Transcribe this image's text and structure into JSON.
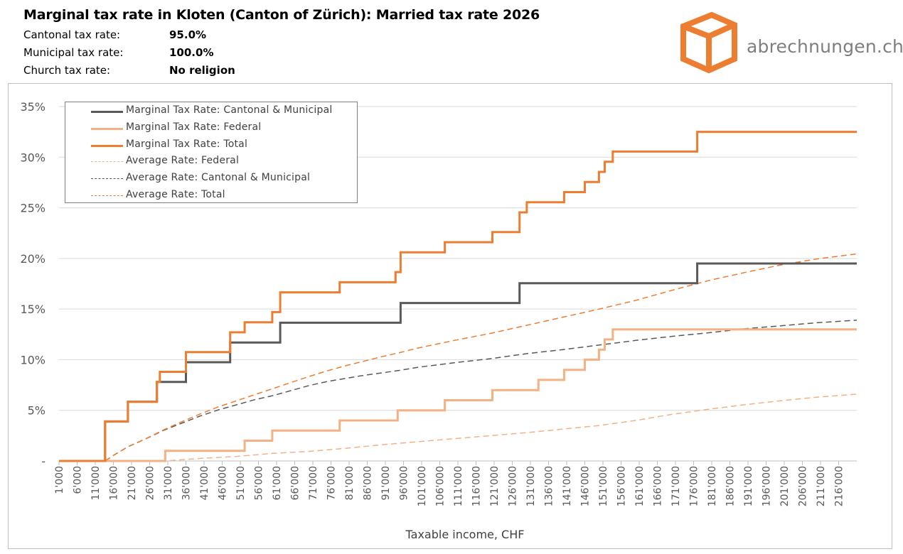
{
  "header": {
    "title": "Marginal tax rate in Kloten (Canton of Zürich): Married tax rate 2026",
    "rows": [
      {
        "label": "Cantonal tax rate:",
        "value": "95.0%"
      },
      {
        "label": "Municipal tax rate:",
        "value": "100.0%"
      },
      {
        "label": "Church tax rate:",
        "value": "No religion"
      }
    ]
  },
  "logo": {
    "text": "abrechnungen.ch",
    "icon": "box-icon",
    "color": "#ed7d31"
  },
  "chart_data": {
    "type": "line",
    "title": "",
    "xlabel": "Taxable income, CHF",
    "ylabel": "",
    "xlim": [
      1000,
      221000
    ],
    "ylim": [
      0,
      35
    ],
    "grid": true,
    "legend_position": "top-left",
    "x_tick_labels": [
      "1'000",
      "6'000",
      "11'000",
      "16'000",
      "21'000",
      "26'000",
      "31'000",
      "36'000",
      "41'000",
      "46'000",
      "51'000",
      "56'000",
      "61'000",
      "66'000",
      "71'000",
      "76'000",
      "81'000",
      "86'000",
      "91'000",
      "96'000",
      "101'000",
      "106'000",
      "111'000",
      "116'000",
      "121'000",
      "126'000",
      "131'000",
      "136'000",
      "141'000",
      "146'000",
      "151'000",
      "156'000",
      "161'000",
      "166'000",
      "171'000",
      "176'000",
      "181'000",
      "186'000",
      "191'000",
      "196'000",
      "201'000",
      "206'000",
      "211'000",
      "216'000"
    ],
    "y_tick_labels": [
      "-",
      "5%",
      "10%",
      "15%",
      "20%",
      "25%",
      "30%",
      "35%"
    ],
    "series": [
      {
        "name": "Marginal Tax Rate: Cantonal & Municipal",
        "color": "#595959",
        "style": "solid",
        "width": 3,
        "step": true,
        "points": [
          [
            1000,
            0
          ],
          [
            13700,
            0
          ],
          [
            13700,
            3.9
          ],
          [
            20000,
            3.9
          ],
          [
            20000,
            5.85
          ],
          [
            28000,
            5.85
          ],
          [
            28000,
            7.8
          ],
          [
            36000,
            7.8
          ],
          [
            36000,
            9.75
          ],
          [
            48200,
            9.75
          ],
          [
            48200,
            11.7
          ],
          [
            62000,
            11.7
          ],
          [
            62000,
            13.65
          ],
          [
            95200,
            13.65
          ],
          [
            95200,
            15.6
          ],
          [
            128000,
            15.6
          ],
          [
            128000,
            17.55
          ],
          [
            177000,
            17.55
          ],
          [
            177000,
            19.5
          ],
          [
            221000,
            19.5
          ]
        ]
      },
      {
        "name": "Marginal Tax Rate: Federal",
        "color": "#f4b183",
        "style": "solid",
        "width": 3,
        "step": true,
        "points": [
          [
            1000,
            0
          ],
          [
            30300,
            0
          ],
          [
            30300,
            1
          ],
          [
            52200,
            1
          ],
          [
            52200,
            2
          ],
          [
            59800,
            2
          ],
          [
            59800,
            3
          ],
          [
            78400,
            3
          ],
          [
            78400,
            4
          ],
          [
            94400,
            4
          ],
          [
            94400,
            5
          ],
          [
            107400,
            5
          ],
          [
            107400,
            6
          ],
          [
            120500,
            6
          ],
          [
            120500,
            7
          ],
          [
            133200,
            7
          ],
          [
            133200,
            8
          ],
          [
            140300,
            8
          ],
          [
            140300,
            9
          ],
          [
            146000,
            9
          ],
          [
            146000,
            10
          ],
          [
            149900,
            10
          ],
          [
            149900,
            11
          ],
          [
            151500,
            11
          ],
          [
            151500,
            12
          ],
          [
            153700,
            12
          ],
          [
            153700,
            13
          ],
          [
            221000,
            13
          ]
        ]
      },
      {
        "name": "Marginal Tax Rate: Total",
        "color": "#ed7d31",
        "style": "solid",
        "width": 3,
        "step": true,
        "points": [
          [
            1000,
            0
          ],
          [
            13700,
            0
          ],
          [
            13700,
            3.9
          ],
          [
            20000,
            3.9
          ],
          [
            20000,
            5.85
          ],
          [
            28000,
            5.85
          ],
          [
            28000,
            7.8
          ],
          [
            28800,
            7.8
          ],
          [
            28800,
            8.8
          ],
          [
            36000,
            8.8
          ],
          [
            36000,
            10.75
          ],
          [
            48200,
            10.75
          ],
          [
            48200,
            12.7
          ],
          [
            52200,
            12.7
          ],
          [
            52200,
            13.7
          ],
          [
            59800,
            13.7
          ],
          [
            59800,
            14.7
          ],
          [
            62000,
            14.7
          ],
          [
            62000,
            16.65
          ],
          [
            78400,
            16.65
          ],
          [
            78400,
            17.65
          ],
          [
            93800,
            17.65
          ],
          [
            93800,
            18.65
          ],
          [
            95200,
            18.65
          ],
          [
            95200,
            20.6
          ],
          [
            107400,
            20.6
          ],
          [
            107400,
            21.6
          ],
          [
            120500,
            21.6
          ],
          [
            120500,
            22.6
          ],
          [
            128000,
            22.6
          ],
          [
            128000,
            24.55
          ],
          [
            130000,
            24.55
          ],
          [
            130000,
            25.55
          ],
          [
            140300,
            25.55
          ],
          [
            140300,
            26.55
          ],
          [
            146000,
            26.55
          ],
          [
            146000,
            27.55
          ],
          [
            149900,
            27.55
          ],
          [
            149900,
            28.55
          ],
          [
            151500,
            28.55
          ],
          [
            151500,
            29.55
          ],
          [
            153700,
            29.55
          ],
          [
            153700,
            30.55
          ],
          [
            177000,
            30.55
          ],
          [
            177000,
            32.5
          ],
          [
            221000,
            32.5
          ]
        ]
      },
      {
        "name": "Average Rate: Federal",
        "color": "#f4b183",
        "style": "dashed",
        "width": 1.5,
        "step": false,
        "points": [
          [
            1000,
            0
          ],
          [
            30300,
            0
          ],
          [
            40000,
            0.25
          ],
          [
            50000,
            0.45
          ],
          [
            60000,
            0.75
          ],
          [
            70000,
            0.95
          ],
          [
            80000,
            1.25
          ],
          [
            90000,
            1.6
          ],
          [
            100000,
            1.9
          ],
          [
            110000,
            2.2
          ],
          [
            120000,
            2.5
          ],
          [
            130000,
            2.8
          ],
          [
            140000,
            3.15
          ],
          [
            150000,
            3.5
          ],
          [
            160000,
            4.0
          ],
          [
            170000,
            4.6
          ],
          [
            180000,
            5.1
          ],
          [
            190000,
            5.55
          ],
          [
            200000,
            5.95
          ],
          [
            210000,
            6.3
          ],
          [
            221000,
            6.6
          ]
        ]
      },
      {
        "name": "Average Rate: Cantonal & Municipal",
        "color": "#595959",
        "style": "dashed",
        "width": 1.5,
        "step": false,
        "points": [
          [
            1000,
            0
          ],
          [
            13700,
            0
          ],
          [
            16000,
            0.55
          ],
          [
            20000,
            1.4
          ],
          [
            25000,
            2.2
          ],
          [
            30000,
            3.05
          ],
          [
            35000,
            3.75
          ],
          [
            40000,
            4.45
          ],
          [
            45000,
            5.05
          ],
          [
            50000,
            5.55
          ],
          [
            55000,
            6.05
          ],
          [
            60000,
            6.45
          ],
          [
            65000,
            6.95
          ],
          [
            70000,
            7.45
          ],
          [
            75000,
            7.85
          ],
          [
            80000,
            8.15
          ],
          [
            85000,
            8.45
          ],
          [
            90000,
            8.7
          ],
          [
            95000,
            8.95
          ],
          [
            100000,
            9.25
          ],
          [
            110000,
            9.7
          ],
          [
            120000,
            10.1
          ],
          [
            130000,
            10.6
          ],
          [
            140000,
            11.0
          ],
          [
            150000,
            11.45
          ],
          [
            160000,
            11.9
          ],
          [
            170000,
            12.3
          ],
          [
            180000,
            12.65
          ],
          [
            190000,
            13.05
          ],
          [
            200000,
            13.35
          ],
          [
            210000,
            13.65
          ],
          [
            221000,
            13.9
          ]
        ]
      },
      {
        "name": "Average Rate: Total",
        "color": "#ed7d31",
        "style": "dashed",
        "width": 1.5,
        "step": false,
        "points": [
          [
            1000,
            0
          ],
          [
            13700,
            0
          ],
          [
            16000,
            0.55
          ],
          [
            20000,
            1.4
          ],
          [
            25000,
            2.2
          ],
          [
            30000,
            3.1
          ],
          [
            35000,
            3.9
          ],
          [
            40000,
            4.65
          ],
          [
            45000,
            5.35
          ],
          [
            50000,
            5.95
          ],
          [
            55000,
            6.55
          ],
          [
            60000,
            7.15
          ],
          [
            65000,
            7.75
          ],
          [
            70000,
            8.35
          ],
          [
            75000,
            8.9
          ],
          [
            80000,
            9.4
          ],
          [
            85000,
            9.85
          ],
          [
            90000,
            10.3
          ],
          [
            95000,
            10.7
          ],
          [
            100000,
            11.15
          ],
          [
            110000,
            11.9
          ],
          [
            120000,
            12.6
          ],
          [
            130000,
            13.4
          ],
          [
            140000,
            14.2
          ],
          [
            150000,
            15.0
          ],
          [
            160000,
            15.85
          ],
          [
            170000,
            16.85
          ],
          [
            180000,
            17.8
          ],
          [
            190000,
            18.6
          ],
          [
            200000,
            19.35
          ],
          [
            210000,
            19.95
          ],
          [
            221000,
            20.45
          ]
        ]
      }
    ]
  }
}
